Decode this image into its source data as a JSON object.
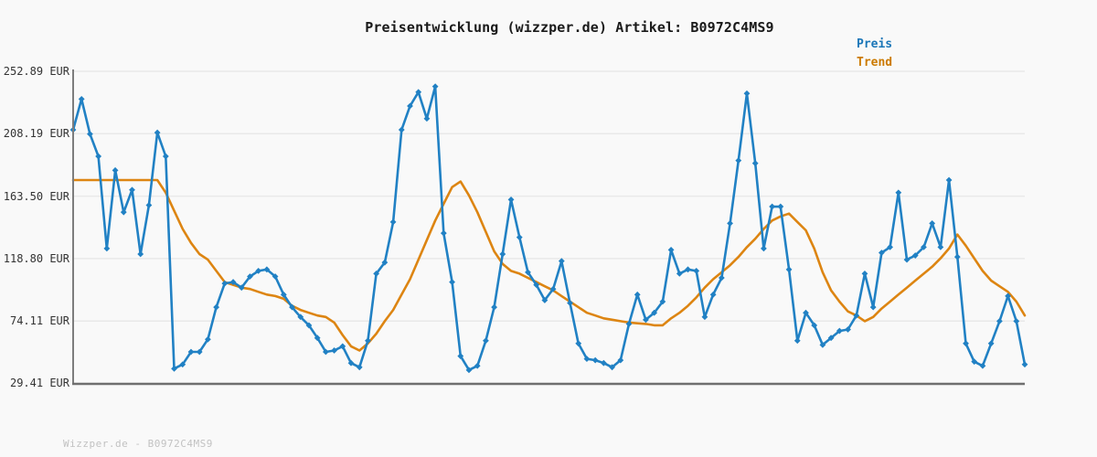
{
  "title": "Preisentwicklung (wizzper.de) Artikel: B0972C4MS9",
  "footer": "Wizzper.de - B0972C4MS9",
  "legend": {
    "items": [
      {
        "label": "Preis",
        "color": "#1b76b8"
      },
      {
        "label": "Trend",
        "color": "#cc7a00"
      }
    ]
  },
  "colors": {
    "price_line": "#2181c4",
    "trend_line": "#dd8512",
    "grid": "#e9e9e9",
    "axis": "#6f6f6f",
    "background": "#f9f9f9"
  },
  "y_axis": {
    "tick_labels": [
      "252.89 EUR",
      "208.19 EUR",
      "163.50 EUR",
      "118.80 EUR",
      "74.11 EUR",
      "29.41 EUR"
    ],
    "tick_values": [
      252.89,
      208.19,
      163.5,
      118.8,
      74.11,
      29.41
    ]
  },
  "chart_data": {
    "type": "line",
    "title": "Preisentwicklung (wizzper.de) Artikel: B0972C4MS9",
    "xlabel": "",
    "ylabel": "EUR",
    "ylim": [
      29.41,
      252.89
    ],
    "grid": true,
    "legend_position": "top-right",
    "x": "time (unlabeled, 114 equally spaced observations)",
    "series": [
      {
        "name": "Preis",
        "color": "#2181c4",
        "marker": "diamond",
        "values": [
          211,
          233,
          208,
          192,
          126,
          182,
          152,
          168,
          122,
          157,
          209,
          192,
          40,
          43,
          52,
          52,
          61,
          84,
          101,
          102,
          98,
          106,
          110,
          111,
          106,
          93,
          84,
          77,
          71,
          62,
          52,
          53,
          56,
          44,
          41,
          60,
          108,
          116,
          145,
          211,
          228,
          238,
          219,
          242,
          137,
          102,
          49,
          39,
          42,
          60,
          84,
          122,
          161,
          134,
          109,
          100,
          89,
          97,
          117,
          87,
          58,
          47,
          46,
          44,
          41,
          46,
          72,
          93,
          75,
          80,
          88,
          125,
          108,
          111,
          110,
          77,
          93,
          105,
          144,
          189,
          237,
          187,
          126,
          156,
          156,
          111,
          60,
          80,
          71,
          57,
          62,
          67,
          68,
          78,
          108,
          84,
          123,
          127,
          166,
          118,
          121,
          127,
          144,
          127,
          175,
          120,
          58,
          45,
          42,
          58,
          74,
          92,
          74,
          43
        ]
      },
      {
        "name": "Trend",
        "color": "#dd8512",
        "marker": "none",
        "values": [
          175,
          175,
          175,
          175,
          175,
          175,
          175,
          175,
          175,
          175,
          175,
          166,
          153,
          140,
          130,
          122,
          118,
          110,
          102,
          100,
          98,
          97,
          95,
          93,
          92,
          90,
          85,
          82,
          80,
          78,
          77,
          73,
          64,
          56,
          53,
          58,
          65,
          74,
          82,
          93,
          104,
          118,
          132,
          146,
          158,
          170,
          174,
          164,
          152,
          138,
          124,
          115,
          110,
          108,
          105,
          102,
          99,
          96,
          92,
          88,
          84,
          80,
          78,
          76,
          75,
          74,
          73,
          72.5,
          72,
          71,
          71,
          76,
          80,
          85,
          91,
          98,
          104,
          109,
          114,
          120,
          127,
          133,
          140,
          146,
          149,
          151,
          145,
          139,
          126,
          109,
          96,
          88,
          81,
          78,
          74,
          77,
          83,
          88,
          93,
          98,
          103,
          108,
          113,
          119,
          126,
          136,
          128,
          119,
          110,
          103,
          99,
          95,
          88,
          78
        ]
      }
    ]
  }
}
